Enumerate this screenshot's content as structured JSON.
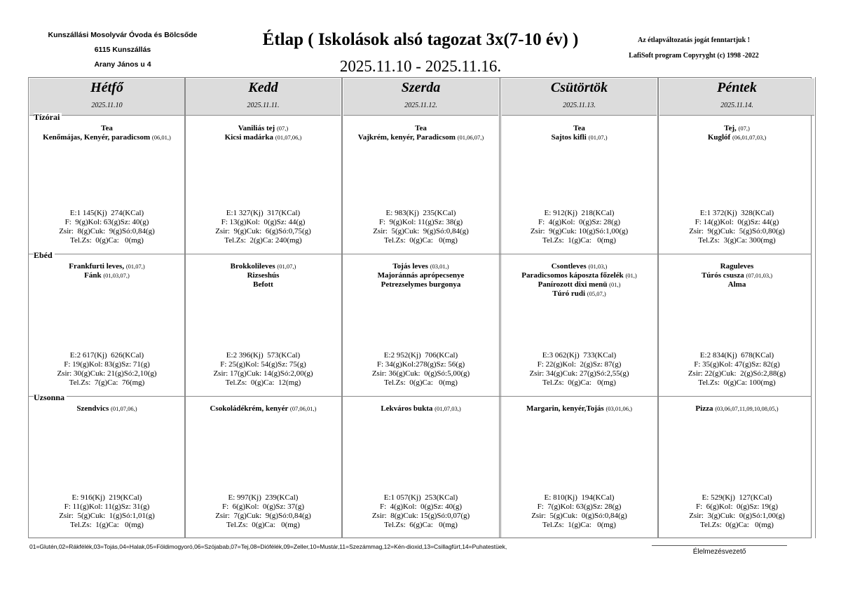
{
  "header": {
    "org_name": "Kunszállási Mosolyvár Óvoda és Bölcsőde",
    "org_city": "6115 Kunszállás",
    "org_address": "Arany János u 4",
    "title": "Étlap (  Iskolások alsó tagozat 3x(7-10 év) )",
    "date_range": "2025.11.10 -  2025.11.16.",
    "notice": "Az étlapváltozatás jogát fenntartjuk !",
    "copyright": "LafiSoft program  Copyryght (c) 1998 -2022"
  },
  "meals": [
    "Tízórai",
    "Ebéd",
    "Uzsonna"
  ],
  "days": [
    {
      "name": "Hétfő",
      "date": "2025.11.10",
      "meals": [
        {
          "items": [
            {
              "name": "Tea",
              "alg": ""
            },
            {
              "name": "Kenőmájas, Kenyér, paradicsom",
              "alg": "(06,01,)"
            }
          ],
          "nutrition": [
            "E:1 145(Kj)  274(KCal)",
            "F:  9(g)Kol: 63(g)Sz: 40(g)",
            "Zsir:  8(g)Cuk:  9(g)Só:0,84(g)",
            "Tel.Zs:  0(g)Ca:   0(mg)"
          ]
        },
        {
          "items": [
            {
              "name": "Frankfurti leves,",
              "alg": "(01,07,)"
            },
            {
              "name": "Fánk",
              "alg": "(01,03,07,)"
            }
          ],
          "nutrition": [
            "E:2 617(Kj)  626(KCal)",
            "F: 19(g)Kol: 83(g)Sz: 71(g)",
            "Zsir: 30(g)Cuk: 21(g)Só:2,10(g)",
            "Tel.Zs:  7(g)Ca:  76(mg)"
          ]
        },
        {
          "items": [
            {
              "name": "Szendvics",
              "alg": "(01,07,06,)"
            }
          ],
          "nutrition": [
            "E: 916(Kj)  219(KCal)",
            "F: 11(g)Kol: 11(g)Sz: 31(g)",
            "Zsir:  5(g)Cuk:  1(g)Só:1,01(g)",
            "Tel.Zs:  1(g)Ca:   0(mg)"
          ]
        }
      ]
    },
    {
      "name": "Kedd",
      "date": "2025.11.11.",
      "meals": [
        {
          "items": [
            {
              "name": "Vaniliás tej",
              "alg": "(07,)"
            },
            {
              "name": "Kicsi madárka",
              "alg": "(01,07,06,)"
            }
          ],
          "nutrition": [
            "E:1 327(Kj)  317(KCal)",
            "F: 13(g)Kol:  0(g)Sz: 44(g)",
            "Zsir:  9(g)Cuk:  6(g)Só:0,75(g)",
            "Tel.Zs:  2(g)Ca: 240(mg)"
          ]
        },
        {
          "items": [
            {
              "name": "Brokkolileves",
              "alg": "(01,07,)"
            },
            {
              "name": "Rizseshús",
              "alg": ""
            },
            {
              "name": "Befott",
              "alg": ""
            }
          ],
          "nutrition": [
            "E:2 396(Kj)  573(KCal)",
            "F: 25(g)Kol: 54(g)Sz: 75(g)",
            "Zsir: 17(g)Cuk: 14(g)Só:2,00(g)",
            "Tel.Zs:  0(g)Ca:  12(mg)"
          ]
        },
        {
          "items": [
            {
              "name": "Csokoládékrém, kenyér",
              "alg": "(07,06,01,)"
            }
          ],
          "nutrition": [
            "E: 997(Kj)  239(KCal)",
            "F:  6(g)Kol:  0(g)Sz: 37(g)",
            "Zsir:  7(g)Cuk:  9(g)Só:0,84(g)",
            "Tel.Zs:  0(g)Ca:   0(mg)"
          ]
        }
      ]
    },
    {
      "name": "Szerda",
      "date": "2025.11.12.",
      "meals": [
        {
          "items": [
            {
              "name": "Tea",
              "alg": ""
            },
            {
              "name": "Vajkrém, kenyér, Paradicsom",
              "alg": "(01,06,07,)"
            }
          ],
          "nutrition": [
            "E: 983(Kj)  235(KCal)",
            "F:  9(g)Kol: 11(g)Sz: 38(g)",
            "Zsir:  5(g)Cuk:  9(g)Só:0,84(g)",
            "Tel.Zs:  0(g)Ca:   0(mg)"
          ]
        },
        {
          "items": [
            {
              "name": "Tojás leves",
              "alg": "(03,01,)"
            },
            {
              "name": "Majoránnás aprópecsenye",
              "alg": ""
            },
            {
              "name": "Petrezselymes burgonya",
              "alg": ""
            }
          ],
          "nutrition": [
            "E:2 952(Kj)  706(KCal)",
            "F: 34(g)Kol:278(g)Sz: 56(g)",
            "Zsir: 36(g)Cuk:  0(g)Só:5,00(g)",
            "Tel.Zs:  0(g)Ca:   0(mg)"
          ]
        },
        {
          "items": [
            {
              "name": "Lekváros bukta",
              "alg": "(01,07,03,)"
            }
          ],
          "nutrition": [
            "E:1 057(Kj)  253(KCal)",
            "F:  4(g)Kol:  0(g)Sz: 40(g)",
            "Zsir:  8(g)Cuk: 15(g)Só:0,07(g)",
            "Tel.Zs:  6(g)Ca:   0(mg)"
          ]
        }
      ]
    },
    {
      "name": "Csütörtök",
      "date": "2025.11.13.",
      "meals": [
        {
          "items": [
            {
              "name": "Tea",
              "alg": ""
            },
            {
              "name": "Sajtos kifli",
              "alg": "(01,07,)"
            }
          ],
          "nutrition": [
            "E: 912(Kj)  218(KCal)",
            "F:  4(g)Kol:  0(g)Sz: 28(g)",
            "Zsir:  9(g)Cuk: 10(g)Só:1,00(g)",
            "Tel.Zs:  1(g)Ca:   0(mg)"
          ]
        },
        {
          "items": [
            {
              "name": "Csontleves",
              "alg": "(01,03,)"
            },
            {
              "name": "Paradicsomos káposzta főzelék",
              "alg": "(01,)"
            },
            {
              "name": "Panírozott dixi menü",
              "alg": "(01,)"
            },
            {
              "name": "Túró rudi",
              "alg": "(05,07,)"
            }
          ],
          "nutrition": [
            "E:3 062(Kj)  733(KCal)",
            "F: 22(g)Kol:  2(g)Sz: 87(g)",
            "Zsir: 34(g)Cuk: 27(g)Só:2,55(g)",
            "Tel.Zs:  0(g)Ca:   0(mg)"
          ]
        },
        {
          "items": [
            {
              "name": "Margarin, kenyér,Tojás",
              "alg": "(03,01,06,)"
            }
          ],
          "nutrition": [
            "E: 810(Kj)  194(KCal)",
            "F:  7(g)Kol: 63(g)Sz: 28(g)",
            "Zsir:  5(g)Cuk:  0(g)Só:0,84(g)",
            "Tel.Zs:  1(g)Ca:   0(mg)"
          ]
        }
      ]
    },
    {
      "name": "Péntek",
      "date": "2025.11.14.",
      "meals": [
        {
          "items": [
            {
              "name": "Tej,",
              "alg": "(07,)"
            },
            {
              "name": "Kuglóf",
              "alg": "(06,01,07,03,)"
            }
          ],
          "nutrition": [
            "E:1 372(Kj)  328(KCal)",
            "F: 14(g)Kol:  0(g)Sz: 44(g)",
            "Zsir:  9(g)Cuk:  5(g)Só:0,80(g)",
            "Tel.Zs:  3(g)Ca: 300(mg)"
          ]
        },
        {
          "items": [
            {
              "name": "Raguleves",
              "alg": ""
            },
            {
              "name": "Túrós csusza",
              "alg": "(07,01,03,)"
            },
            {
              "name": "Alma",
              "alg": ""
            }
          ],
          "nutrition": [
            "E:2 834(Kj)  678(KCal)",
            "F: 35(g)Kol: 47(g)Sz: 82(g)",
            "Zsir: 22(g)Cuk:  2(g)Só:2,88(g)",
            "Tel.Zs:  0(g)Ca: 100(mg)"
          ]
        },
        {
          "items": [
            {
              "name": "Pizza",
              "alg": "(03,06,07,11,09,10,08,05,)"
            }
          ],
          "nutrition": [
            "E: 529(Kj)  127(KCal)",
            "F:  6(g)Kol:  0(g)Sz: 19(g)",
            "Zsir:  3(g)Cuk:  0(g)Só:1,00(g)",
            "Tel.Zs:  0(g)Ca:   0(mg)"
          ]
        }
      ]
    }
  ],
  "footer": {
    "allergen_legend": "01=Glutén,02=Rákfélék,03=Tojás,04=Halak,05=Földimogyoró,06=Szójabab,07=Tej,08=Diófélék,09=Zeller,10=Mustár,11=Szezámmag,12=Kén-dioxid,13=Csillagfürt,14=Puhatestüek,",
    "signature_label": "Élelmezésvezető"
  }
}
